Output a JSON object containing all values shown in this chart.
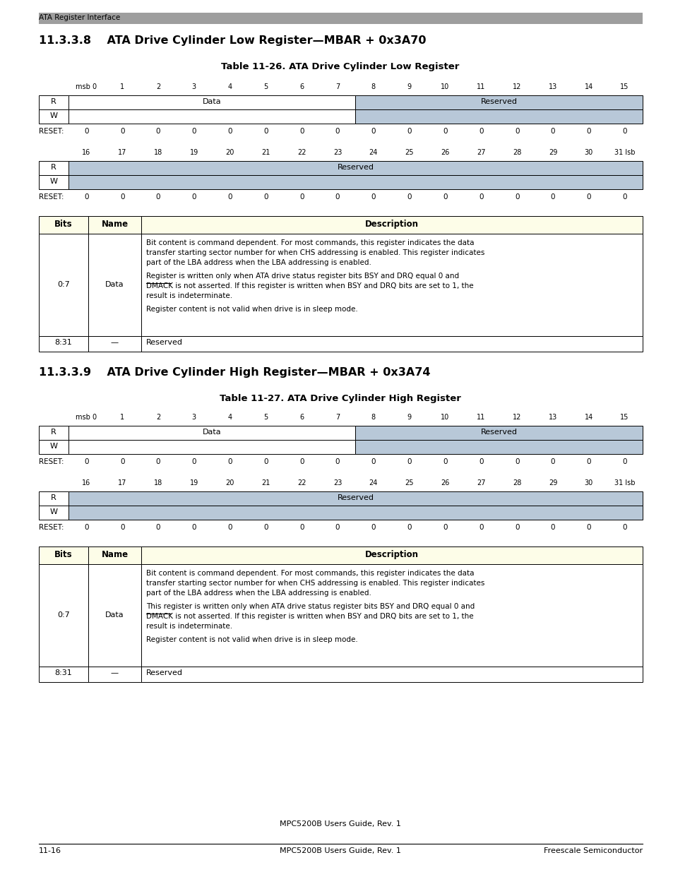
{
  "page_width": 9.54,
  "page_height": 12.35,
  "bg_color": "#ffffff",
  "header_bar_color": "#9e9e9e",
  "header_text": "ATA Register Interface",
  "section1_heading": "11.3.3.8    ATA Drive Cylinder Low Register—MBAR + 0x3A70",
  "table1_title": "Table 11-26. ATA Drive Cylinder Low Register",
  "section2_heading": "11.3.3.9    ATA Drive Cylinder High Register—MBAR + 0x3A74",
  "table2_title": "Table 11-27. ATA Drive Cylinder High Register",
  "bits_msb_row": [
    "msb 0",
    "1",
    "2",
    "3",
    "4",
    "5",
    "6",
    "7",
    "8",
    "9",
    "10",
    "11",
    "12",
    "13",
    "14",
    "15"
  ],
  "bits_lsb_row": [
    "16",
    "17",
    "18",
    "19",
    "20",
    "21",
    "22",
    "23",
    "24",
    "25",
    "26",
    "27",
    "28",
    "29",
    "30",
    "31 lsb"
  ],
  "reset_values": [
    "0",
    "0",
    "0",
    "0",
    "0",
    "0",
    "0",
    "0",
    "0",
    "0",
    "0",
    "0",
    "0",
    "0",
    "0",
    "0"
  ],
  "data_color": "#ffffff",
  "reserved_color": "#b8c8d8",
  "table_header_color": "#fdfde8",
  "footer_center": "MPC5200B Users Guide, Rev. 1",
  "footer_left": "11-16",
  "footer_right": "Freescale Semiconductor",
  "desc1_para1_lines": [
    "Bit content is command dependent. For most commands, this register indicates the data",
    "transfer starting sector number for when CHS addressing is enabled. This register indicates",
    "part of the LBA address when the LBA addressing is enabled."
  ],
  "desc1_para2_lines": [
    "Register is written only when ATA drive status register bits BSY and DRQ equal 0 and",
    "DMACK is not asserted. If this register is written when BSY and DRQ bits are set to 1, the",
    "result is indeterminate."
  ],
  "desc1_para3_lines": [
    "Register content is not valid when drive is in sleep mode."
  ],
  "desc2_para2_lines": [
    "This register is written only when ATA drive status register bits BSY and DRQ equal 0 and",
    "DMACK is not asserted. If this register is written when BSY and DRQ bits are set to 1, the",
    "result is indeterminate."
  ]
}
